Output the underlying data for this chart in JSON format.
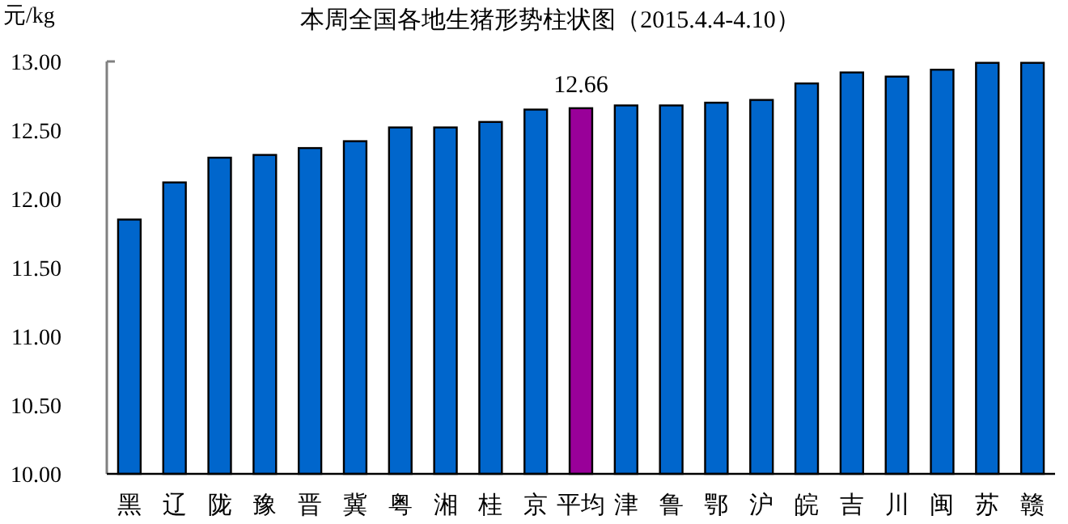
{
  "chart_data": {
    "type": "bar",
    "title": "本周全国各地生猪形势柱状图（2015.4.4-4.10）",
    "ylabel": "元/kg",
    "categories": [
      "黑",
      "辽",
      "陇",
      "豫",
      "晋",
      "冀",
      "粤",
      "湘",
      "桂",
      "京",
      "平均",
      "津",
      "鲁",
      "鄂",
      "沪",
      "皖",
      "吉",
      "川",
      "闽",
      "苏",
      "赣"
    ],
    "values": [
      11.85,
      12.12,
      12.3,
      12.32,
      12.37,
      12.42,
      12.52,
      12.52,
      12.56,
      12.65,
      12.66,
      12.68,
      12.68,
      12.7,
      12.72,
      12.84,
      12.92,
      12.89,
      12.94,
      12.99,
      12.99
    ],
    "colors": [
      "#0066cc",
      "#0066cc",
      "#0066cc",
      "#0066cc",
      "#0066cc",
      "#0066cc",
      "#0066cc",
      "#0066cc",
      "#0066cc",
      "#0066cc",
      "#990099",
      "#0066cc",
      "#0066cc",
      "#0066cc",
      "#0066cc",
      "#0066cc",
      "#0066cc",
      "#0066cc",
      "#0066cc",
      "#0066cc",
      "#0066cc"
    ],
    "value_labels": [
      null,
      null,
      null,
      null,
      null,
      null,
      null,
      null,
      null,
      null,
      "12.66",
      null,
      null,
      null,
      null,
      null,
      null,
      null,
      null,
      null,
      null
    ],
    "ylim": [
      10,
      13
    ],
    "yticks": [
      {
        "value": 10,
        "label": "10.00"
      },
      {
        "value": 10.5,
        "label": "10.50"
      },
      {
        "value": 11,
        "label": "11.00"
      },
      {
        "value": 11.5,
        "label": "11.50"
      },
      {
        "value": 12,
        "label": "12.00"
      },
      {
        "value": 12.5,
        "label": "12.50"
      },
      {
        "value": 13,
        "label": "13.00"
      }
    ],
    "grid": false
  }
}
